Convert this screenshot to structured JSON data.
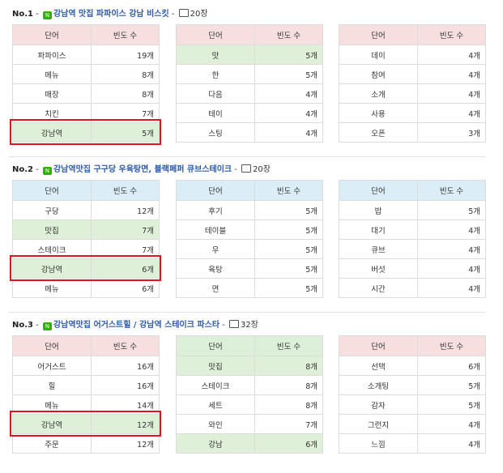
{
  "sections": [
    {
      "label": "No.1",
      "title": "강남역 맛집 파파이스 강남 비스킷",
      "photos": "20장",
      "boxed_table": 0,
      "boxed_row": 4,
      "tables": [
        {
          "header": [
            "단어",
            "빈도 수"
          ],
          "header_color": "#f7dfe0",
          "highlighted_rows": [
            4
          ],
          "rows": [
            [
              "파파이스",
              "19개"
            ],
            [
              "메뉴",
              "8개"
            ],
            [
              "매장",
              "8개"
            ],
            [
              "치킨",
              "7개"
            ],
            [
              "강남역",
              "5개"
            ]
          ]
        },
        {
          "header": [
            "단어",
            "빈도 수"
          ],
          "header_color": "#f7dfe0",
          "highlighted_rows": [
            0
          ],
          "rows": [
            [
              "맛",
              "5개"
            ],
            [
              "한",
              "5개"
            ],
            [
              "다음",
              "4개"
            ],
            [
              "테이",
              "4개"
            ],
            [
              "스팅",
              "4개"
            ]
          ]
        },
        {
          "header": [
            "단어",
            "빈도 수"
          ],
          "header_color": "#f7dfe0",
          "highlighted_rows": [],
          "rows": [
            [
              "데이",
              "4개"
            ],
            [
              "참여",
              "4개"
            ],
            [
              "소개",
              "4개"
            ],
            [
              "사용",
              "4개"
            ],
            [
              "오픈",
              "3개"
            ]
          ]
        }
      ]
    },
    {
      "label": "No.2",
      "title": "강남역맛집 구구당 우육탕면, 블랙페퍼 큐브스테이크",
      "photos": "20장",
      "boxed_table": 0,
      "boxed_row": 3,
      "tables": [
        {
          "header": [
            "단어",
            "빈도 수"
          ],
          "header_color": "#dbeef8",
          "highlighted_rows": [
            1,
            3
          ],
          "rows": [
            [
              "구당",
              "12개"
            ],
            [
              "맛집",
              "7개"
            ],
            [
              "스테이크",
              "7개"
            ],
            [
              "강남역",
              "6개"
            ],
            [
              "메뉴",
              "6개"
            ]
          ]
        },
        {
          "header": [
            "단어",
            "빈도 수"
          ],
          "header_color": "#dbeef8",
          "highlighted_rows": [],
          "rows": [
            [
              "후기",
              "5개"
            ],
            [
              "테이블",
              "5개"
            ],
            [
              "우",
              "5개"
            ],
            [
              "육탕",
              "5개"
            ],
            [
              "면",
              "5개"
            ]
          ]
        },
        {
          "header": [
            "단어",
            "빈도 수"
          ],
          "header_color": "#dbeef8",
          "highlighted_rows": [],
          "rows": [
            [
              "밥",
              "5개"
            ],
            [
              "대기",
              "4개"
            ],
            [
              "큐브",
              "4개"
            ],
            [
              "버섯",
              "4개"
            ],
            [
              "시간",
              "4개"
            ]
          ]
        }
      ]
    },
    {
      "label": "No.3",
      "title": "강남역맛집 어거스트힐 / 강남역 스테이크 파스타",
      "photos": "32장",
      "boxed_table": 0,
      "boxed_row": 3,
      "tables": [
        {
          "header": [
            "단어",
            "빈도 수"
          ],
          "header_color": "#f7dfe0",
          "highlighted_rows": [
            3
          ],
          "rows": [
            [
              "어거스트",
              "16개"
            ],
            [
              "힐",
              "16개"
            ],
            [
              "메뉴",
              "14개"
            ],
            [
              "강남역",
              "12개"
            ],
            [
              "주문",
              "12개"
            ]
          ]
        },
        {
          "header": [
            "단어",
            "빈도 수"
          ],
          "header_color": "#dcefd8",
          "highlighted_rows": [
            0,
            4
          ],
          "rows": [
            [
              "맛집",
              "8개"
            ],
            [
              "스테이크",
              "8개"
            ],
            [
              "세트",
              "8개"
            ],
            [
              "와인",
              "7개"
            ],
            [
              "강남",
              "6개"
            ]
          ]
        },
        {
          "header": [
            "단어",
            "빈도 수"
          ],
          "header_color": "#f7dfe0",
          "highlighted_rows": [],
          "rows": [
            [
              "선택",
              "6개"
            ],
            [
              "소개팅",
              "5개"
            ],
            [
              "감자",
              "5개"
            ],
            [
              "그런지",
              "4개"
            ],
            [
              "느낌",
              "4개"
            ]
          ]
        }
      ]
    }
  ]
}
